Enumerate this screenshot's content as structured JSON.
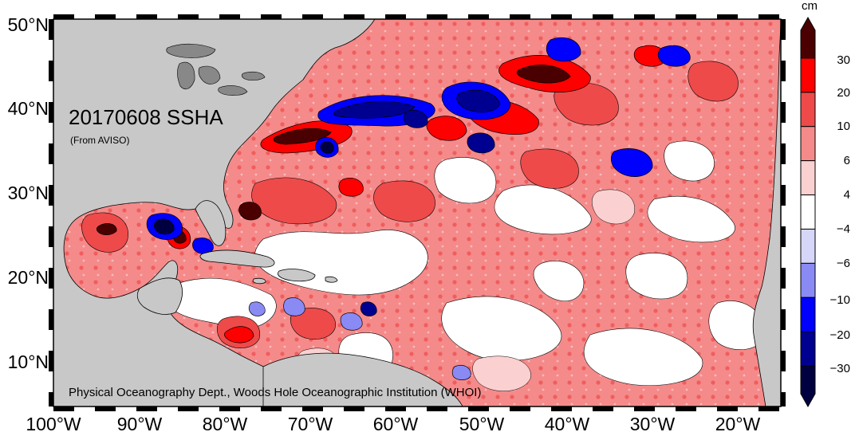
{
  "map": {
    "title": "20170608 SSHA",
    "subtitle": "(From AVISO)",
    "credit": "Physical Oceanography Dept., Woods Hole Oceanographic Institution (WHOI)",
    "lon_ticks": [
      "100°W",
      "90°W",
      "80°W",
      "70°W",
      "60°W",
      "50°W",
      "40°W",
      "30°W",
      "20°W"
    ],
    "lat_ticks": [
      "50°N",
      "40°N",
      "30°N",
      "20°N",
      "10°N"
    ],
    "extent": {
      "lon": [
        -100,
        -15
      ],
      "lat": [
        5,
        51
      ]
    },
    "colors": {
      "land": "#c8c8c8",
      "ocean_neutral": "#ffffff",
      "frame": "#000000"
    }
  },
  "colorbar": {
    "unit": "cm",
    "labels": [
      "30",
      "20",
      "10",
      "6",
      "4",
      "−4",
      "−6",
      "−10",
      "−20",
      "−30"
    ],
    "bins": [
      {
        "color": "#4a0000"
      },
      {
        "color": "#ff0000"
      },
      {
        "color": "#ee4a4a"
      },
      {
        "color": "#f58a8a"
      },
      {
        "color": "#fad0d0"
      },
      {
        "color": "#ffffff"
      },
      {
        "color": "#d6d6f8"
      },
      {
        "color": "#8a8af5"
      },
      {
        "color": "#0000ff"
      },
      {
        "color": "#000090"
      },
      {
        "color": "#000040"
      }
    ]
  }
}
